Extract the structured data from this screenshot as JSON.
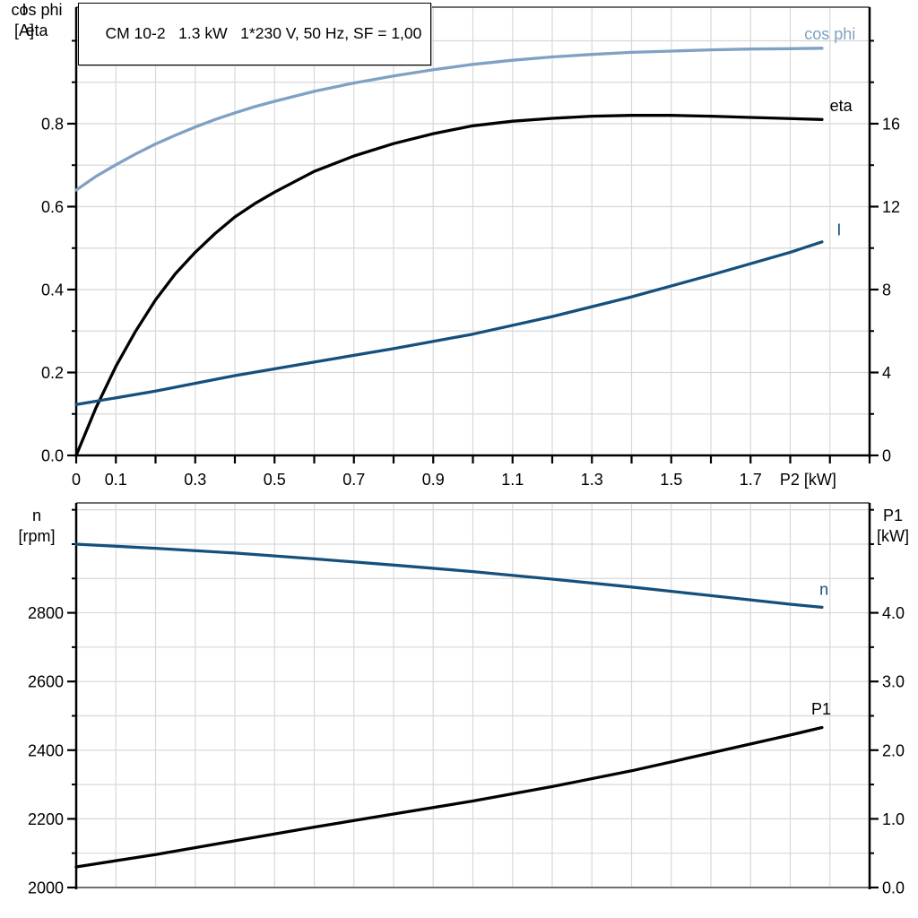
{
  "colors": {
    "grid": "#d8d8d8",
    "frame_gray": "#6e6e6e",
    "axis_black": "#000000",
    "light_blue": "#7fa1c4",
    "dark_blue": "#15507d",
    "black": "#000000"
  },
  "chart_data": [
    {
      "type": "line",
      "title": "CM 10-2   1.3 kW   1*230 V, 50 Hz, SF = 1,00",
      "xlabel": "P2 [kW]",
      "ylabel_left": [
        "cos phi",
        "eta"
      ],
      "ylabel_right": [
        "I",
        "[A]"
      ],
      "x_axis": {
        "min": 0,
        "max": 2.0,
        "grid_step": 0.1,
        "tick_step": 0.1,
        "show_labels": true,
        "labeled_ticks": [
          {
            "v": 0,
            "t": "0"
          },
          {
            "v": 0.1,
            "t": "0.1"
          },
          {
            "v": 0.3,
            "t": "0.3"
          },
          {
            "v": 0.5,
            "t": "0.5"
          },
          {
            "v": 0.7,
            "t": "0.7"
          },
          {
            "v": 0.9,
            "t": "0.9"
          },
          {
            "v": 1.1,
            "t": "1.1"
          },
          {
            "v": 1.3,
            "t": "1.3"
          },
          {
            "v": 1.5,
            "t": "1.5"
          },
          {
            "v": 1.7,
            "t": "1.7"
          }
        ],
        "xlabel_pos": 1.845
      },
      "left_axis": {
        "min": 0,
        "max": 1.081,
        "grid_step": 0.1,
        "minor_tick_step": 0.1,
        "labeled_ticks": [
          {
            "v": 0.0,
            "t": "0.0"
          },
          {
            "v": 0.2,
            "t": "0.2"
          },
          {
            "v": 0.4,
            "t": "0.4"
          },
          {
            "v": 0.6,
            "t": "0.6"
          },
          {
            "v": 0.8,
            "t": "0.8"
          }
        ]
      },
      "right_axis": {
        "min": 0,
        "max": 21.62,
        "minor_tick_step": 2,
        "labeled_ticks": [
          {
            "v": 0,
            "t": "0"
          },
          {
            "v": 4,
            "t": "4"
          },
          {
            "v": 8,
            "t": "8"
          },
          {
            "v": 12,
            "t": "12"
          },
          {
            "v": 16,
            "t": "16"
          }
        ]
      },
      "series": [
        {
          "name": "cos phi",
          "axis": "left",
          "color": "#7fa1c4",
          "label": {
            "text": "cos phi",
            "x": 1.9,
            "v": 1.016
          },
          "points": [
            [
              0,
              0.64
            ],
            [
              0.05,
              0.673
            ],
            [
              0.1,
              0.701
            ],
            [
              0.15,
              0.727
            ],
            [
              0.2,
              0.751
            ],
            [
              0.25,
              0.772
            ],
            [
              0.3,
              0.792
            ],
            [
              0.35,
              0.81
            ],
            [
              0.4,
              0.826
            ],
            [
              0.45,
              0.841
            ],
            [
              0.5,
              0.854
            ],
            [
              0.6,
              0.878
            ],
            [
              0.7,
              0.898
            ],
            [
              0.8,
              0.915
            ],
            [
              0.9,
              0.93
            ],
            [
              1.0,
              0.943
            ],
            [
              1.1,
              0.953
            ],
            [
              1.2,
              0.961
            ],
            [
              1.3,
              0.967
            ],
            [
              1.4,
              0.972
            ],
            [
              1.5,
              0.975
            ],
            [
              1.6,
              0.978
            ],
            [
              1.7,
              0.98
            ],
            [
              1.8,
              0.981
            ],
            [
              1.88,
              0.982
            ]
          ]
        },
        {
          "name": "eta",
          "axis": "left",
          "color": "#000000",
          "label": {
            "text": "eta",
            "x": 1.928,
            "v": 0.843
          },
          "points": [
            [
              0,
              0.0
            ],
            [
              0.05,
              0.115
            ],
            [
              0.1,
              0.215
            ],
            [
              0.15,
              0.3
            ],
            [
              0.2,
              0.375
            ],
            [
              0.25,
              0.438
            ],
            [
              0.3,
              0.49
            ],
            [
              0.35,
              0.535
            ],
            [
              0.4,
              0.575
            ],
            [
              0.45,
              0.607
            ],
            [
              0.5,
              0.635
            ],
            [
              0.6,
              0.685
            ],
            [
              0.7,
              0.722
            ],
            [
              0.8,
              0.752
            ],
            [
              0.9,
              0.776
            ],
            [
              1.0,
              0.795
            ],
            [
              1.1,
              0.806
            ],
            [
              1.2,
              0.813
            ],
            [
              1.3,
              0.818
            ],
            [
              1.4,
              0.82
            ],
            [
              1.5,
              0.82
            ],
            [
              1.6,
              0.818
            ],
            [
              1.7,
              0.815
            ],
            [
              1.88,
              0.81
            ]
          ]
        },
        {
          "name": "I",
          "axis": "right",
          "color": "#15507d",
          "label": {
            "text": "I",
            "x": 1.923,
            "v": 10.88
          },
          "points": [
            [
              0,
              2.45
            ],
            [
              0.2,
              3.1
            ],
            [
              0.4,
              3.85
            ],
            [
              0.6,
              4.5
            ],
            [
              0.8,
              5.15
            ],
            [
              1.0,
              5.85
            ],
            [
              1.2,
              6.7
            ],
            [
              1.4,
              7.65
            ],
            [
              1.6,
              8.7
            ],
            [
              1.8,
              9.8
            ],
            [
              1.88,
              10.3
            ]
          ]
        }
      ]
    },
    {
      "type": "line",
      "title": "",
      "xlabel": "",
      "ylabel_left": [
        "n",
        "[rpm]"
      ],
      "ylabel_right": [
        "P1",
        "[kW]"
      ],
      "x_axis": {
        "min": 0,
        "max": 2.0,
        "grid_step": 0.1,
        "show_labels": false,
        "labeled_ticks": []
      },
      "left_axis": {
        "min": 2000,
        "max": 3120,
        "grid_step": 100,
        "minor_tick_step": 100,
        "labeled_ticks": [
          {
            "v": 2000,
            "t": "2000"
          },
          {
            "v": 2200,
            "t": "2200"
          },
          {
            "v": 2400,
            "t": "2400"
          },
          {
            "v": 2600,
            "t": "2600"
          },
          {
            "v": 2800,
            "t": "2800"
          }
        ]
      },
      "right_axis": {
        "min": 0,
        "max": 5.6,
        "minor_tick_step": 0.5,
        "labeled_ticks": [
          {
            "v": 0.0,
            "t": "0.0"
          },
          {
            "v": 1.0,
            "t": "1.0"
          },
          {
            "v": 2.0,
            "t": "2.0"
          },
          {
            "v": 3.0,
            "t": "3.0"
          },
          {
            "v": 4.0,
            "t": "4.0"
          }
        ]
      },
      "series": [
        {
          "name": "n",
          "axis": "left",
          "color": "#15507d",
          "label": {
            "text": "n",
            "x": 1.885,
            "v": 2868
          },
          "points": [
            [
              0,
              3000
            ],
            [
              0.2,
              2988
            ],
            [
              0.4,
              2974
            ],
            [
              0.6,
              2957
            ],
            [
              0.8,
              2939
            ],
            [
              1.0,
              2920
            ],
            [
              1.2,
              2898
            ],
            [
              1.4,
              2875
            ],
            [
              1.6,
              2850
            ],
            [
              1.8,
              2825
            ],
            [
              1.88,
              2816
            ]
          ]
        },
        {
          "name": "P1",
          "axis": "right",
          "color": "#000000",
          "label": {
            "text": "P1",
            "x": 1.878,
            "v": 2.6
          },
          "points": [
            [
              0,
              0.3
            ],
            [
              0.2,
              0.48
            ],
            [
              0.4,
              0.68
            ],
            [
              0.6,
              0.88
            ],
            [
              0.8,
              1.07
            ],
            [
              1.0,
              1.26
            ],
            [
              1.2,
              1.47
            ],
            [
              1.4,
              1.7
            ],
            [
              1.6,
              1.96
            ],
            [
              1.8,
              2.22
            ],
            [
              1.88,
              2.33
            ]
          ]
        }
      ]
    }
  ]
}
